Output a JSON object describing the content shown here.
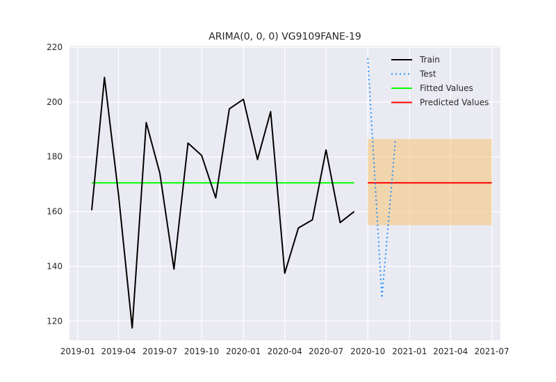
{
  "chart_data": {
    "type": "line",
    "title": "ARIMA(0, 0, 0) VG9109FANE-19",
    "xlabel": "",
    "ylabel": "",
    "x_ticks": [
      "2019-01",
      "2019-04",
      "2019-07",
      "2019-10",
      "2020-01",
      "2020-04",
      "2020-07",
      "2020-10",
      "2021-01",
      "2021-04",
      "2021-07"
    ],
    "y_ticks": [
      120,
      140,
      160,
      180,
      200,
      220
    ],
    "xlim": [
      "2018-12-14",
      "2021-07-20"
    ],
    "ylim": [
      113,
      220.5
    ],
    "grid": true,
    "legend_position": "top-right",
    "series": [
      {
        "name": "Train",
        "style": "solid",
        "color": "#000000",
        "points": [
          [
            "2019-02-01",
            160.5
          ],
          [
            "2019-03-01",
            209
          ],
          [
            "2019-04-01",
            166
          ],
          [
            "2019-05-01",
            117.5
          ],
          [
            "2019-06-01",
            192.5
          ],
          [
            "2019-07-01",
            174
          ],
          [
            "2019-08-01",
            139
          ],
          [
            "2019-09-01",
            185
          ],
          [
            "2019-10-01",
            180.5
          ],
          [
            "2019-11-01",
            165
          ],
          [
            "2019-12-01",
            197.5
          ],
          [
            "2020-01-01",
            201
          ],
          [
            "2020-02-01",
            179
          ],
          [
            "2020-03-01",
            196.5
          ],
          [
            "2020-04-01",
            137.5
          ],
          [
            "2020-05-01",
            154
          ],
          [
            "2020-06-01",
            157
          ],
          [
            "2020-07-01",
            182.5
          ],
          [
            "2020-08-01",
            156
          ],
          [
            "2020-09-01",
            160
          ]
        ]
      },
      {
        "name": "Test",
        "style": "dotted",
        "color": "#1e90ff",
        "points": [
          [
            "2020-10-01",
            216
          ],
          [
            "2020-11-01",
            128.5
          ],
          [
            "2020-12-01",
            186.5
          ]
        ]
      },
      {
        "name": "Fitted Values",
        "style": "solid",
        "color": "#00ff00",
        "points": [
          [
            "2019-02-01",
            170.5
          ],
          [
            "2020-09-01",
            170.5
          ]
        ]
      },
      {
        "name": "Predicted Values",
        "style": "solid",
        "color": "#ff0000",
        "points": [
          [
            "2020-10-01",
            170.5
          ],
          [
            "2021-07-01",
            170.5
          ]
        ]
      }
    ],
    "confidence_band": {
      "color": "#f5c77e",
      "x_start": "2020-10-01",
      "x_end": "2021-07-01",
      "lower": 155,
      "upper": 186.5
    }
  },
  "colors": {
    "figure_background": "#ffffff",
    "axes_background": "#eaeaf2",
    "grid": "#ffffff"
  }
}
